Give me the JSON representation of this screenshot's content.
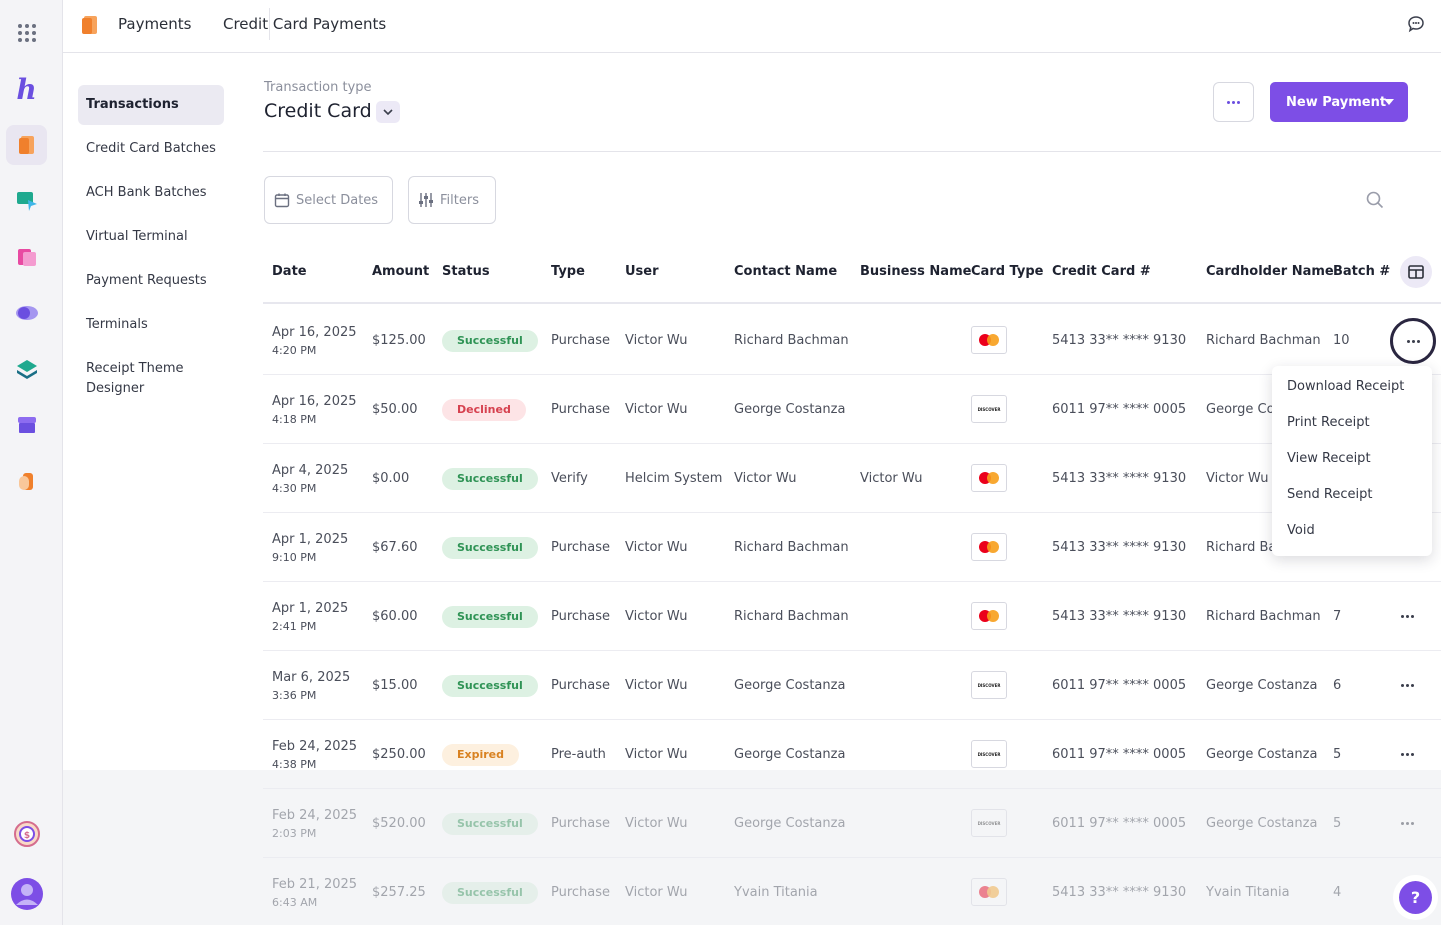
{
  "header": {
    "app": "Payments",
    "page": "Credit Card Payments"
  },
  "subnav": [
    "Transactions",
    "Credit Card Batches",
    "ACH Bank Batches",
    "Virtual Terminal",
    "Payment Requests",
    "Terminals",
    "Receipt Theme Designer"
  ],
  "transaction_type": {
    "label": "Transaction type",
    "value": "Credit Card"
  },
  "actions": {
    "new_payment": "New Payment"
  },
  "toolbar": {
    "select_dates": "Select Dates",
    "filters": "Filters"
  },
  "columns": [
    "Date",
    "Amount",
    "Status",
    "Type",
    "User",
    "Contact Name",
    "Business Name",
    "Card Type",
    "Credit Card #",
    "Cardholder Name",
    "Batch #"
  ],
  "rows": [
    {
      "date": "Apr 16, 2025",
      "time": "4:20 PM",
      "amount": "$125.00",
      "status": "Successful",
      "type": "Purchase",
      "user": "Victor Wu",
      "contact": "Richard Bachman",
      "business": "",
      "card": "mastercard",
      "card_no": "5413 33** **** 9130",
      "holder": "Richard Bachman",
      "batch": "10"
    },
    {
      "date": "Apr 16, 2025",
      "time": "4:18 PM",
      "amount": "$50.00",
      "status": "Declined",
      "type": "Purchase",
      "user": "Victor Wu",
      "contact": "George Costanza",
      "business": "",
      "card": "discover",
      "card_no": "6011 97** **** 0005",
      "holder": "George Costanza",
      "batch": ""
    },
    {
      "date": "Apr 4, 2025",
      "time": "4:30 PM",
      "amount": "$0.00",
      "status": "Successful",
      "type": "Verify",
      "user": "Helcim System",
      "contact": "Victor Wu",
      "business": "Victor Wu",
      "card": "mastercard",
      "card_no": "5413 33** **** 9130",
      "holder": "Victor Wu",
      "batch": ""
    },
    {
      "date": "Apr 1, 2025",
      "time": "9:10 PM",
      "amount": "$67.60",
      "status": "Successful",
      "type": "Purchase",
      "user": "Victor Wu",
      "contact": "Richard Bachman",
      "business": "",
      "card": "mastercard",
      "card_no": "5413 33** **** 9130",
      "holder": "Richard Bachman",
      "batch": ""
    },
    {
      "date": "Apr 1, 2025",
      "time": "2:41 PM",
      "amount": "$60.00",
      "status": "Successful",
      "type": "Purchase",
      "user": "Victor Wu",
      "contact": "Richard Bachman",
      "business": "",
      "card": "mastercard",
      "card_no": "5413 33** **** 9130",
      "holder": "Richard Bachman",
      "batch": "7"
    },
    {
      "date": "Mar 6, 2025",
      "time": "3:36 PM",
      "amount": "$15.00",
      "status": "Successful",
      "type": "Purchase",
      "user": "Victor Wu",
      "contact": "George Costanza",
      "business": "",
      "card": "discover",
      "card_no": "6011 97** **** 0005",
      "holder": "George Costanza",
      "batch": "6"
    },
    {
      "date": "Feb 24, 2025",
      "time": "4:38 PM",
      "amount": "$250.00",
      "status": "Expired",
      "type": "Pre-auth",
      "user": "Victor Wu",
      "contact": "George Costanza",
      "business": "",
      "card": "discover",
      "card_no": "6011 97** **** 0005",
      "holder": "George Costanza",
      "batch": "5"
    },
    {
      "date": "Feb 24, 2025",
      "time": "2:03 PM",
      "amount": "$520.00",
      "status": "Successful",
      "type": "Purchase",
      "user": "Victor Wu",
      "contact": "George Costanza",
      "business": "",
      "card": "discover",
      "card_no": "6011 97** **** 0005",
      "holder": "George Costanza",
      "batch": "5"
    },
    {
      "date": "Feb 21, 2025",
      "time": "6:43 AM",
      "amount": "$257.25",
      "status": "Successful",
      "type": "Purchase",
      "user": "Victor Wu",
      "contact": "Yvain Titania",
      "business": "",
      "card": "mastercard",
      "card_no": "5413 33** **** 9130",
      "holder": "Yvain Titania",
      "batch": "4"
    }
  ],
  "row_menu": [
    "Download Receipt",
    "Print Receipt",
    "View Receipt",
    "Send Receipt",
    "Void"
  ],
  "discover_text": "DISCOVER",
  "help": "?",
  "colors": {
    "accent": "#7d4ee6",
    "success": "#2f9355",
    "declined": "#d6414f",
    "expired": "#d98221"
  }
}
